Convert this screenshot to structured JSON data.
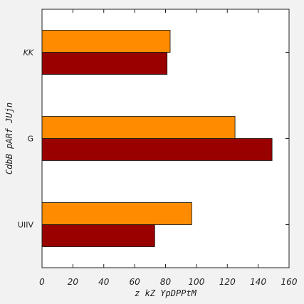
{
  "chart_data": {
    "type": "bar",
    "orientation": "horizontal",
    "categories": [
      "UIIV",
      "G",
      "KK"
    ],
    "series": [
      {
        "values": [
          73,
          149,
          81
        ],
        "color": "#990000"
      },
      {
        "values": [
          97,
          125,
          83
        ],
        "color": "#ff8c00"
      }
    ],
    "xlabel": "z kZ YpDPPtM",
    "ylabel": "CdbB pARf JUjn",
    "xlim": [
      0,
      160
    ],
    "xticks": [
      0,
      20,
      40,
      60,
      80,
      100,
      120,
      140,
      160
    ],
    "grid": false,
    "background": "#ffffff",
    "figure_background": "#f2f2f2"
  }
}
